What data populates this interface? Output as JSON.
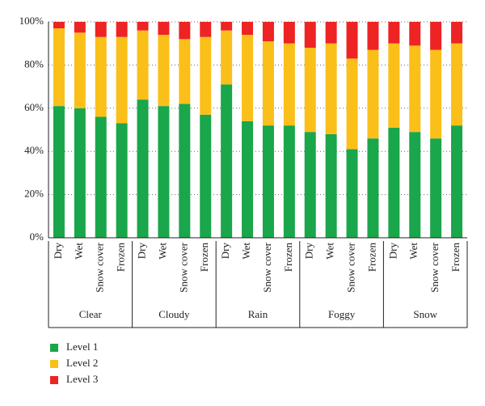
{
  "chart_data": {
    "type": "stacked_bar",
    "groups": [
      {
        "label": "Clear",
        "categories": [
          "Dry",
          "Wet",
          "Snow cover",
          "Frozen"
        ]
      },
      {
        "label": "Cloudy",
        "categories": [
          "Dry",
          "Wet",
          "Snow cover",
          "Frozen"
        ]
      },
      {
        "label": "Rain",
        "categories": [
          "Dry",
          "Wet",
          "Snow cover",
          "Frozen"
        ]
      },
      {
        "label": "Foggy",
        "categories": [
          "Dry",
          "Wet",
          "Snow cover",
          "Frozen"
        ]
      },
      {
        "label": "Snow",
        "categories": [
          "Dry",
          "Wet",
          "Snow cover",
          "Frozen"
        ]
      }
    ],
    "series": [
      {
        "name": "Level 1",
        "color": "#1aa64a",
        "values": [
          61,
          60,
          56,
          53,
          64,
          61,
          62,
          57,
          71,
          54,
          52,
          52,
          49,
          48,
          41,
          46,
          51,
          49,
          46,
          52
        ]
      },
      {
        "name": "Level 2",
        "color": "#fbbf1a",
        "values": [
          36,
          35,
          37,
          40,
          32,
          33,
          30,
          36,
          25,
          40,
          39,
          38,
          39,
          42,
          42,
          41,
          39,
          40,
          41,
          38
        ]
      },
      {
        "name": "Level 3",
        "color": "#ee2324",
        "values": [
          3,
          5,
          7,
          7,
          4,
          6,
          8,
          7,
          4,
          6,
          9,
          10,
          12,
          10,
          17,
          13,
          10,
          11,
          13,
          10
        ]
      }
    ],
    "ylim": [
      0,
      100
    ],
    "yticks": [
      {
        "value": 0,
        "label": "0%"
      },
      {
        "value": 20,
        "label": "20%"
      },
      {
        "value": 40,
        "label": "40%"
      },
      {
        "value": 60,
        "label": "60%"
      },
      {
        "value": 80,
        "label": "80%"
      },
      {
        "value": 100,
        "label": "100%"
      }
    ],
    "grid": true
  }
}
